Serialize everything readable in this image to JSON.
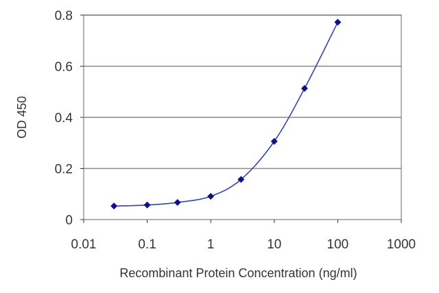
{
  "chart_data": {
    "type": "line",
    "title": "",
    "xlabel": "Recombinant Protein Concentration (ng/ml)",
    "ylabel": "OD 450",
    "x_scale": "log",
    "xlim": [
      0.01,
      1000
    ],
    "ylim": [
      0,
      0.8
    ],
    "x_ticks": [
      "0.01",
      "0.1",
      "1",
      "10",
      "100",
      "1000"
    ],
    "y_ticks": [
      "0",
      "0.2",
      "0.4",
      "0.6",
      "0.8"
    ],
    "grid": "horizontal",
    "legend": "none",
    "series": [
      {
        "x": [
          0.03,
          0.1,
          0.3,
          1,
          3,
          10,
          30,
          100
        ],
        "y": [
          0.053,
          0.057,
          0.067,
          0.091,
          0.157,
          0.306,
          0.513,
          0.772
        ]
      }
    ],
    "colors": {
      "line": "#3344aa",
      "marker": "#10108a",
      "grid": "#888888",
      "axis": "#333333"
    }
  }
}
